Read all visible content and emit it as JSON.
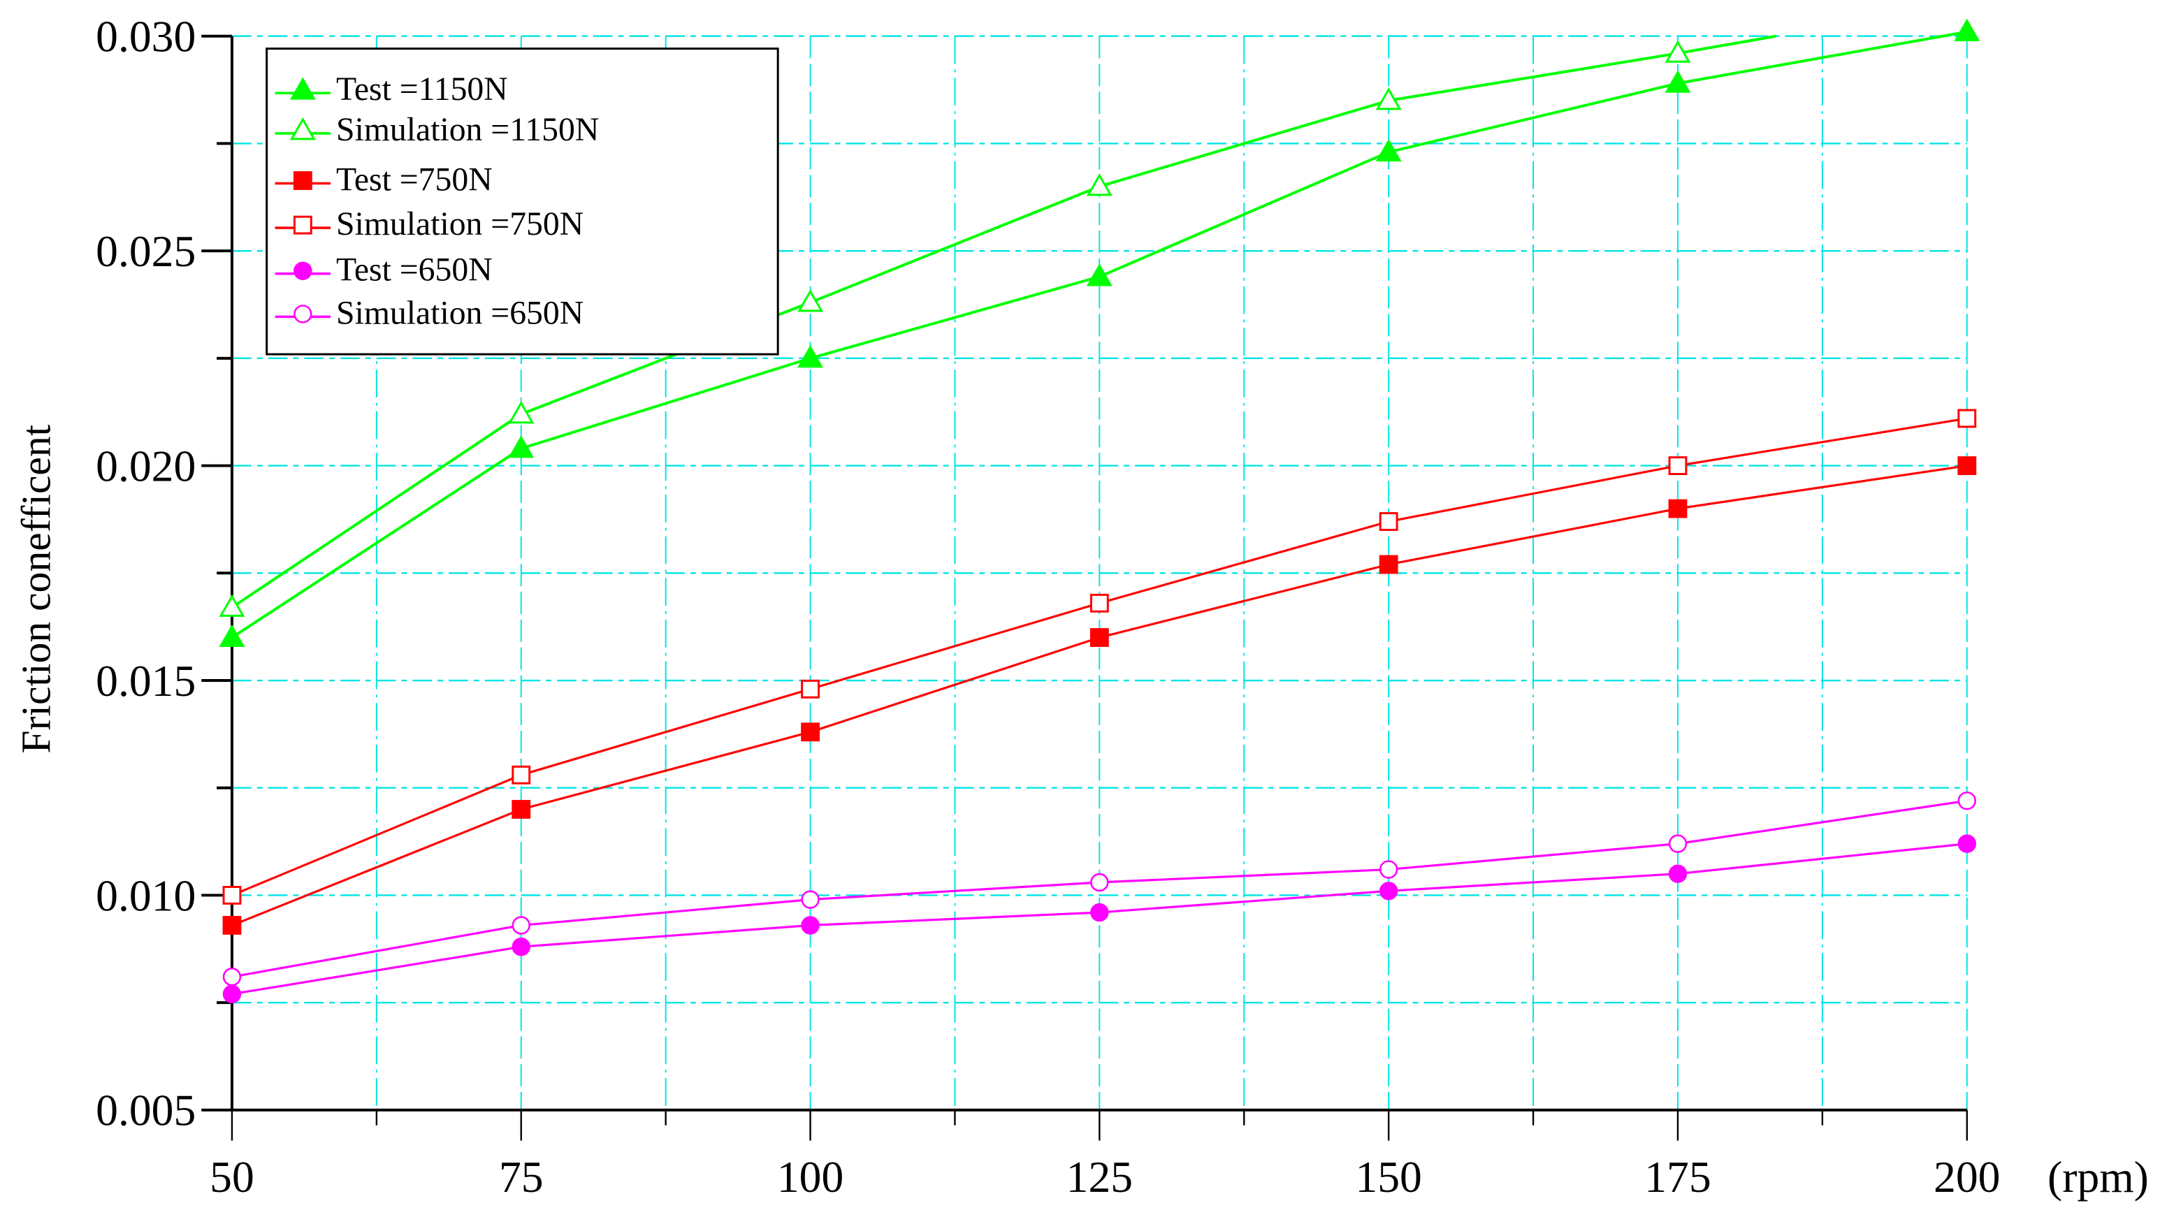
{
  "chart_data": {
    "type": "line",
    "title": "",
    "xlabel": "(rpm)",
    "ylabel": "Friction conefficent",
    "x": [
      50,
      75,
      100,
      125,
      150,
      175,
      200
    ],
    "xlim": [
      50,
      200
    ],
    "ylim": [
      0.005,
      0.03
    ],
    "x_ticks": [
      "50",
      "75",
      "100",
      "125",
      "150",
      "175",
      "200"
    ],
    "y_ticks": [
      "0.005",
      "0.010",
      "0.015",
      "0.020",
      "0.025",
      "0.030"
    ],
    "grid": true,
    "grid_color": "#00e5e5",
    "legend_position": "upper-left",
    "series": [
      {
        "name": "Test =1150N",
        "color": "#00ff00",
        "marker": "triangle-filled",
        "values": [
          0.016,
          0.0204,
          0.0225,
          0.0244,
          0.0273,
          0.0289,
          0.0301
        ]
      },
      {
        "name": "Simulation =1150N",
        "color": "#00ff00",
        "marker": "triangle-open",
        "values": [
          0.0167,
          0.0212,
          0.0238,
          0.0265,
          0.0285,
          0.0296,
          null
        ],
        "note": "line continues past 175 rpm and is clipped at the 0.030 top boundary"
      },
      {
        "name": "Test =750N",
        "color": "#ff0000",
        "marker": "square-filled",
        "values": [
          0.0093,
          0.012,
          0.0138,
          0.016,
          0.0177,
          0.019,
          0.02
        ]
      },
      {
        "name": "Simulation =750N",
        "color": "#ff0000",
        "marker": "square-open",
        "values": [
          0.01,
          0.0128,
          0.0148,
          0.0168,
          0.0187,
          0.02,
          0.0211
        ]
      },
      {
        "name": "Test =650N",
        "color": "#ff00ff",
        "marker": "circle-filled",
        "values": [
          0.0077,
          0.0088,
          0.0093,
          0.0096,
          0.0101,
          0.0105,
          0.0112
        ]
      },
      {
        "name": "Simulation =650N",
        "color": "#ff00ff",
        "marker": "circle-open",
        "values": [
          0.0081,
          0.0093,
          0.0099,
          0.0103,
          0.0106,
          0.0112,
          0.0122
        ]
      }
    ]
  }
}
